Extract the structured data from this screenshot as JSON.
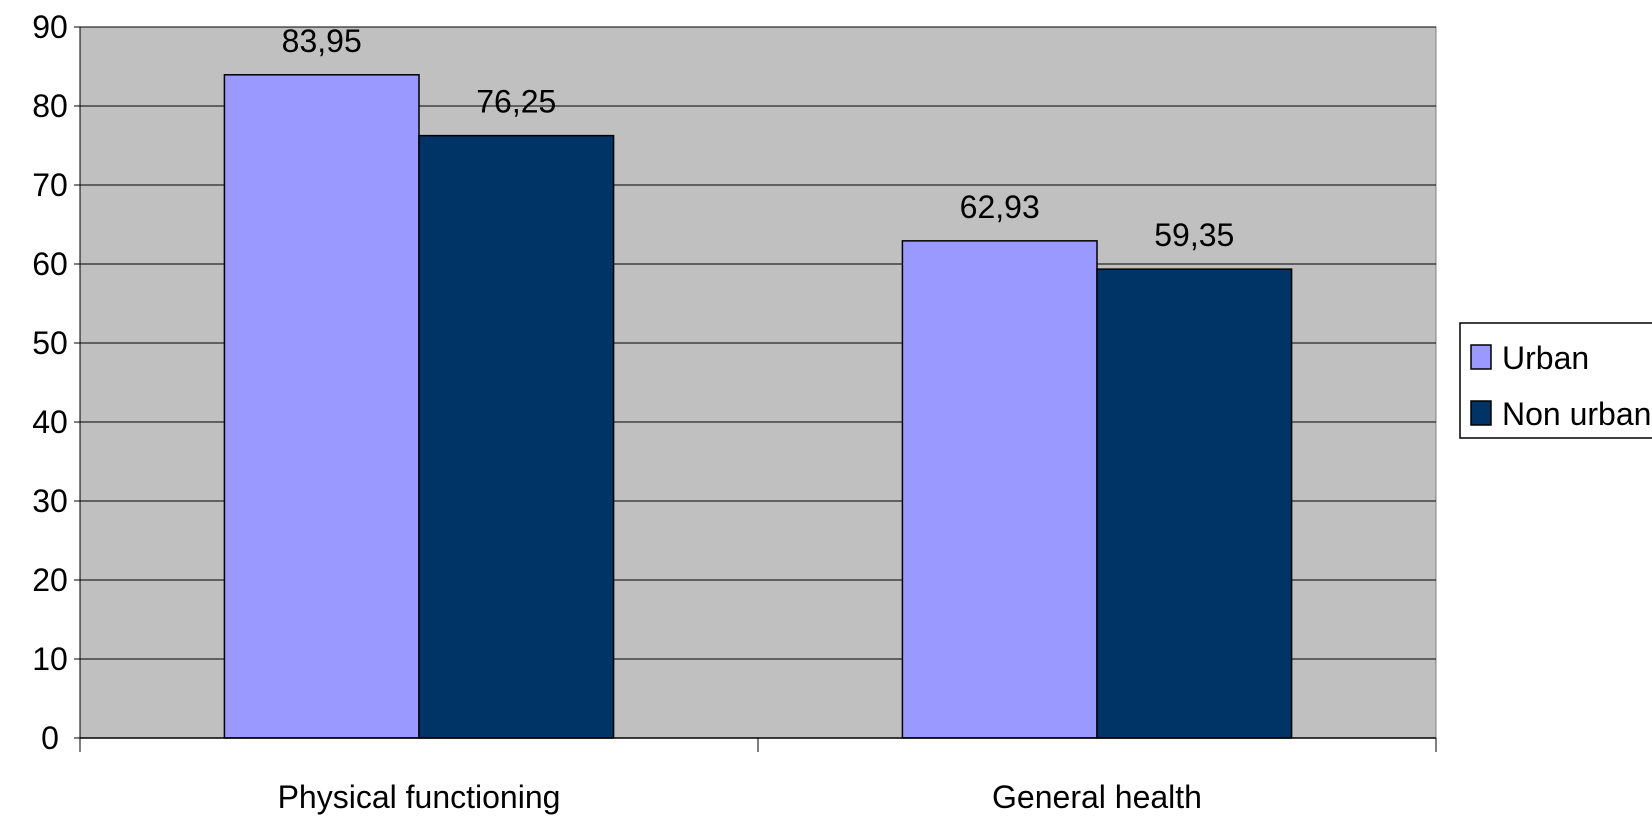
{
  "chart_data": {
    "type": "bar",
    "title": "",
    "xlabel": "",
    "ylabel": "",
    "categories": [
      "Physical functioning",
      "General health"
    ],
    "series": [
      {
        "name": "Urban",
        "values": [
          83.95,
          62.93
        ],
        "labels": [
          "83,95",
          "62,93"
        ],
        "color": "#9999ff"
      },
      {
        "name": "Non urban",
        "values": [
          76.25,
          59.35
        ],
        "labels": [
          "76,25",
          "59,35"
        ],
        "color": "#003366"
      }
    ],
    "ylim": [
      0,
      90
    ],
    "yticks": [
      "0",
      "10",
      "20",
      "30",
      "40",
      "50",
      "60",
      "70",
      "80",
      "90"
    ],
    "grid": true,
    "legend_position": "right",
    "plot_background": "#c0c0c0",
    "decimal_separator": ","
  }
}
